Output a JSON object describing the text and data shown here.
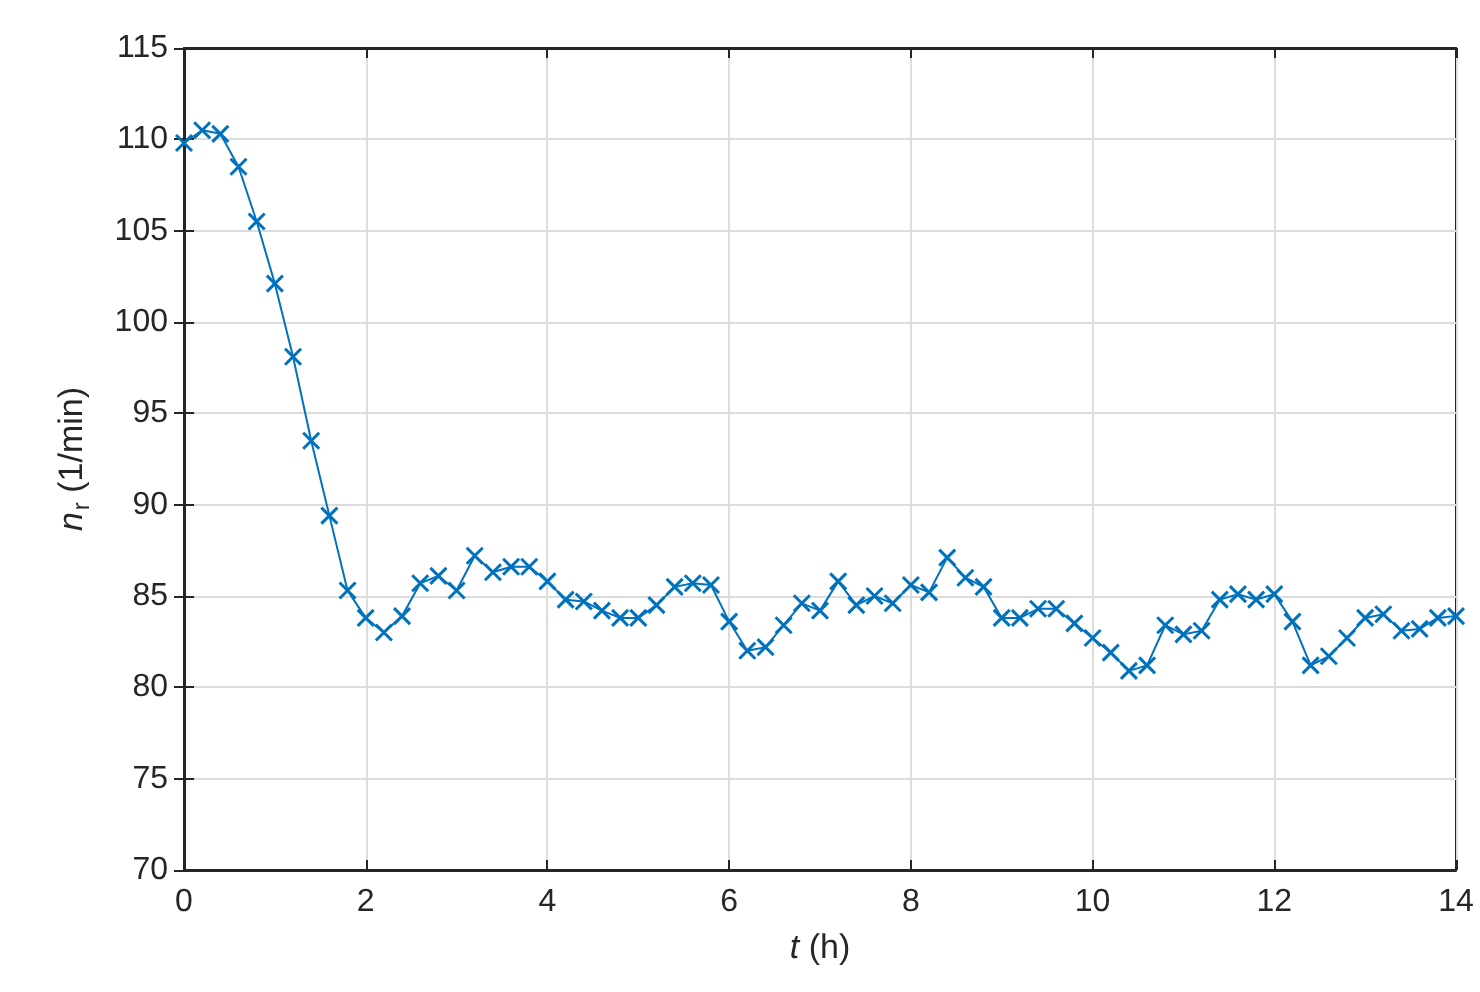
{
  "chart_data": {
    "type": "line",
    "xlabel": "t (h)",
    "ylabel": "n$_{r}$ (1/min)",
    "x": [
      0,
      0.2,
      0.4,
      0.6,
      0.8,
      1,
      1.2,
      1.4,
      1.6,
      1.8,
      2,
      2.2,
      2.4,
      2.6,
      2.8,
      3,
      3.2,
      3.4,
      3.6,
      3.8,
      4,
      4.2,
      4.4,
      4.6,
      4.8,
      5,
      5.2,
      5.4,
      5.6,
      5.8,
      6,
      6.2,
      6.4,
      6.6,
      6.8,
      7,
      7.2,
      7.4,
      7.6,
      7.8,
      8,
      8.2,
      8.4,
      8.6,
      8.8,
      9,
      9.2,
      9.4,
      9.6,
      9.8,
      10,
      10.2,
      10.4,
      10.6,
      10.8,
      11,
      11.2,
      11.4,
      11.6,
      11.8,
      12,
      12.2,
      12.4,
      12.6,
      12.8,
      13,
      13.2,
      13.4,
      13.6,
      13.8,
      14
    ],
    "series": [
      {
        "color": "#0072bd",
        "values": [
          109.8,
          110.5,
          110.3,
          108.5,
          105.5,
          102.1,
          98.1,
          93.5,
          89.4,
          85.3,
          83.8,
          83.0,
          83.9,
          85.7,
          86.1,
          85.3,
          87.2,
          86.3,
          86.6,
          86.6,
          85.8,
          84.8,
          84.7,
          84.2,
          83.8,
          83.8,
          84.5,
          85.5,
          85.7,
          85.6,
          83.6,
          82.0,
          82.2,
          83.4,
          84.6,
          84.2,
          85.8,
          84.5,
          85.0,
          84.6,
          85.6,
          85.2,
          87.1,
          86.0,
          85.5,
          83.8,
          83.8,
          84.3,
          84.3,
          83.5,
          82.7,
          81.9,
          80.9,
          81.2,
          83.4,
          82.9,
          83.1,
          84.8,
          85.1,
          84.8,
          85.1,
          83.6,
          81.2,
          81.7,
          82.7,
          83.8,
          84.0,
          83.1,
          83.2,
          83.8,
          83.9
        ]
      }
    ],
    "xlim": [
      0,
      14
    ],
    "xticks": [
      0,
      2,
      4,
      6,
      8,
      10,
      12,
      14
    ],
    "ylim": [
      70,
      115
    ],
    "yticks": [
      70,
      75,
      80,
      85,
      90,
      95,
      100,
      105,
      110,
      115
    ],
    "grid": true,
    "marker": "cross",
    "line_style": "solid"
  }
}
